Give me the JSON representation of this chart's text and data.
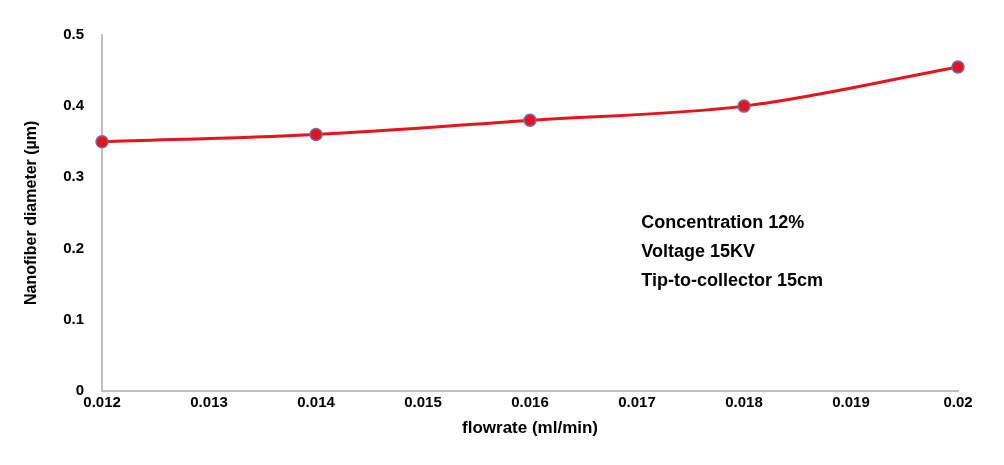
{
  "chart_data": {
    "type": "line",
    "xlabel": "flowrate (ml/min)",
    "ylabel": "Nanofiber diameter (µm)",
    "x": [
      0.012,
      0.014,
      0.016,
      0.018,
      0.02
    ],
    "series": [
      {
        "color": "#e8131b",
        "values": [
          0.35,
          0.36,
          0.38,
          0.4,
          0.455
        ]
      }
    ],
    "xlim": [
      0.012,
      0.02
    ],
    "xticks": [
      0.012,
      0.013,
      0.014,
      0.015,
      0.016,
      0.017,
      0.018,
      0.019,
      0.02
    ],
    "ylim": [
      0,
      0.5
    ],
    "yticks": [
      0,
      0.1,
      0.2,
      0.3,
      0.4,
      0.5
    ],
    "grid": false,
    "legend": false,
    "marker": "circle",
    "line_style": "solid",
    "annotations": [
      "Concentration 12%",
      "Voltage 15KV",
      "Tip-to-collector 15cm"
    ]
  }
}
